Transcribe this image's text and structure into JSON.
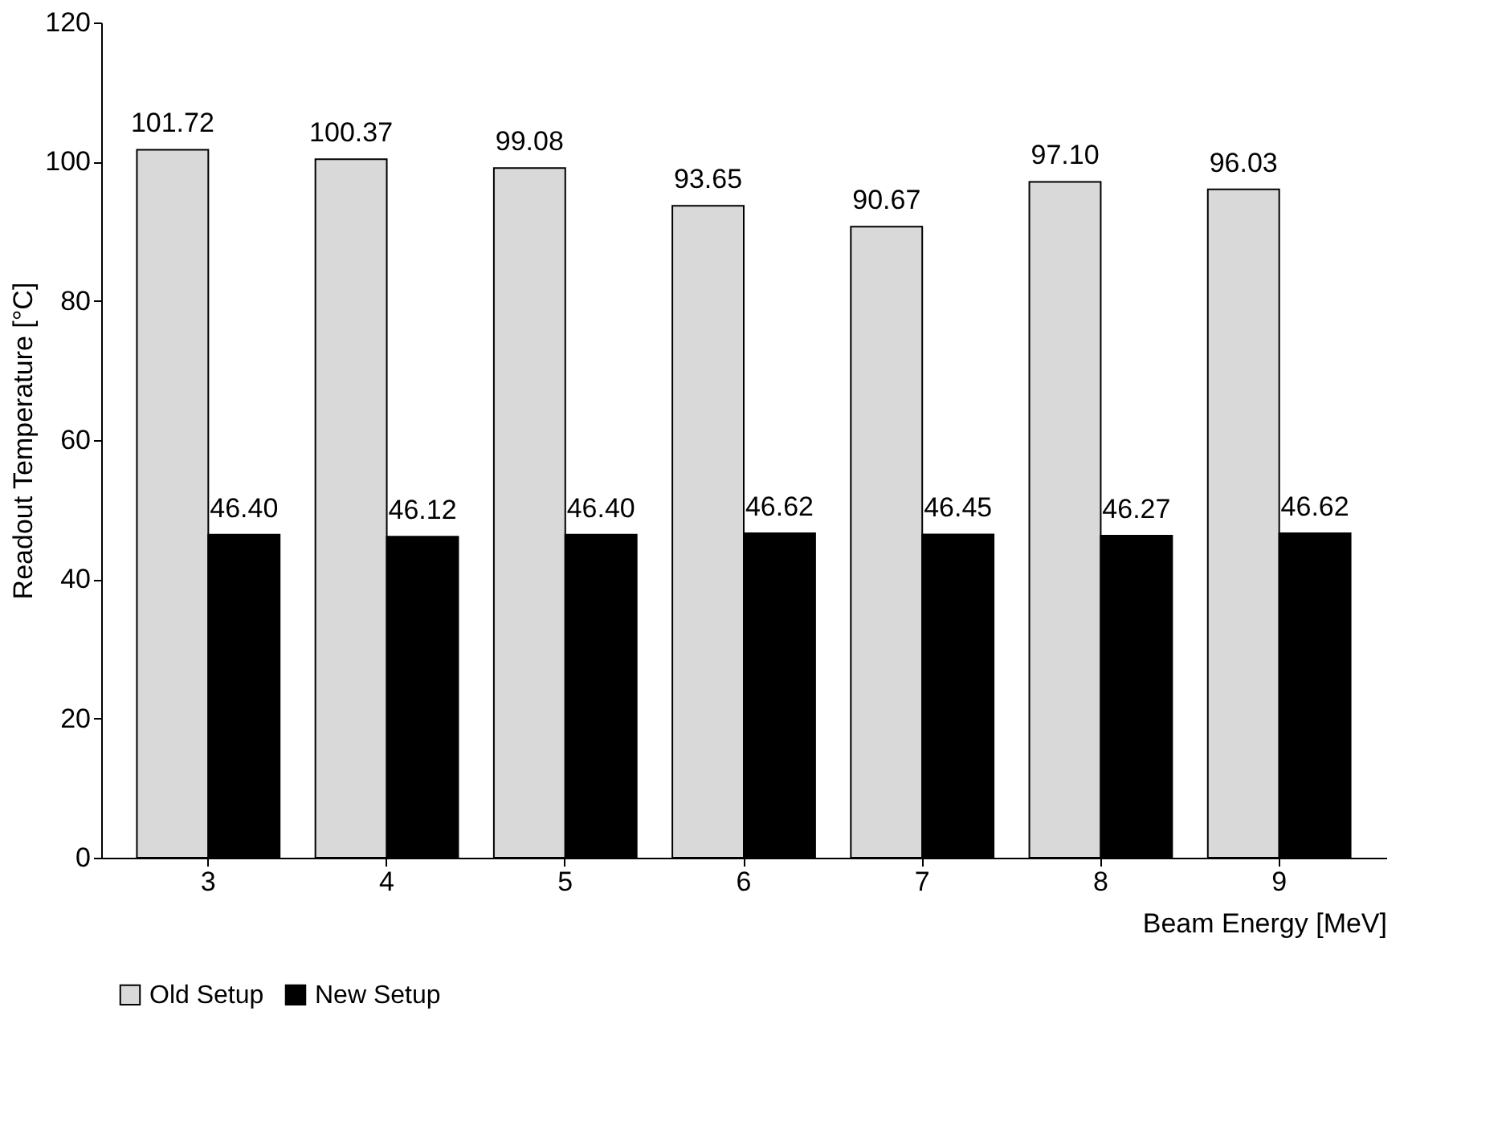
{
  "chart_data": {
    "type": "bar",
    "xlabel": "Beam Energy [MeV]",
    "ylabel": "Readout Temperature [°C]",
    "categories": [
      "3",
      "4",
      "5",
      "6",
      "7",
      "8",
      "9"
    ],
    "series": [
      {
        "name": "Old Setup",
        "color": "#d9d9d9",
        "values": [
          101.72,
          100.37,
          99.08,
          93.65,
          90.67,
          97.1,
          96.03
        ],
        "value_labels": [
          "101.72",
          "100.37",
          "99.08",
          "93.65",
          "90.67",
          "97.10",
          "96.03"
        ]
      },
      {
        "name": "New Setup",
        "color": "#000000",
        "values": [
          46.4,
          46.12,
          46.4,
          46.62,
          46.45,
          46.27,
          46.62
        ],
        "value_labels": [
          "46.40",
          "46.12",
          "46.40",
          "46.62",
          "46.45",
          "46.27",
          "46.62"
        ]
      }
    ],
    "ylim": [
      0,
      120
    ],
    "yticks": [
      0,
      20,
      40,
      60,
      80,
      100,
      120
    ],
    "grid": false,
    "legend": "bottom"
  }
}
